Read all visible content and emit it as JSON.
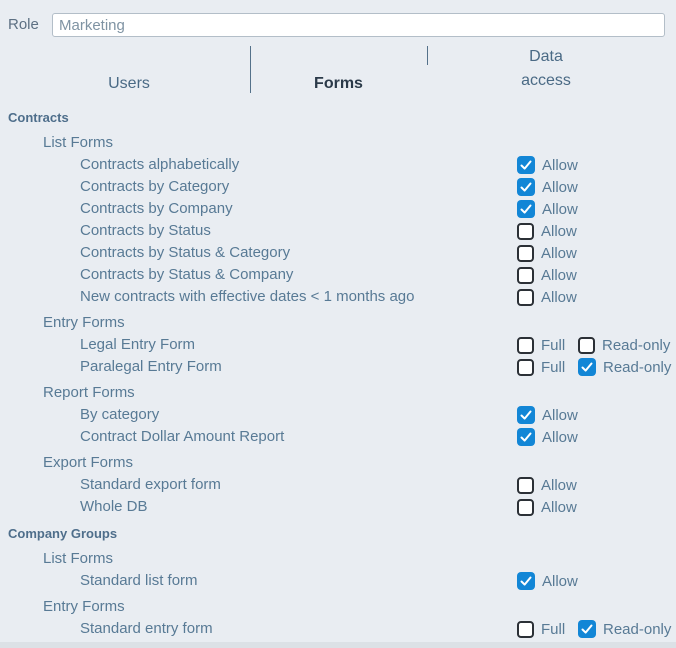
{
  "role_field": {
    "label": "Role",
    "value": "Marketing"
  },
  "tabs": [
    {
      "label": "Users",
      "active": false
    },
    {
      "label": "Forms",
      "active": true
    },
    {
      "label": "Data access",
      "active": false
    }
  ],
  "colors": {
    "background": "#e9edf2",
    "checkbox_checked": "#1286d6",
    "checkbox_border": "#2b3036",
    "section_header_text": "#4e6e8b",
    "item_text": "#587a95",
    "active_tab_text": "#2b3a49",
    "inactive_tab_text": "#4a6a85",
    "input_border": "#b3bec8"
  },
  "sections": [
    {
      "title": "Contracts",
      "groups": [
        {
          "title": "List Forms",
          "items": [
            {
              "label": "Contracts alphabetically",
              "controls": [
                {
                  "type": "checkbox",
                  "label": "Allow",
                  "checked": true
                }
              ]
            },
            {
              "label": "Contracts by Category",
              "controls": [
                {
                  "type": "checkbox",
                  "label": "Allow",
                  "checked": true
                }
              ]
            },
            {
              "label": "Contracts by Company",
              "controls": [
                {
                  "type": "checkbox",
                  "label": "Allow",
                  "checked": true
                }
              ]
            },
            {
              "label": "Contracts by Status",
              "controls": [
                {
                  "type": "checkbox",
                  "label": "Allow",
                  "checked": false
                }
              ]
            },
            {
              "label": "Contracts by Status & Category",
              "controls": [
                {
                  "type": "checkbox",
                  "label": "Allow",
                  "checked": false
                }
              ]
            },
            {
              "label": "Contracts by Status & Company",
              "controls": [
                {
                  "type": "checkbox",
                  "label": "Allow",
                  "checked": false
                }
              ]
            },
            {
              "label": "New contracts with effective dates < 1 months ago",
              "controls": [
                {
                  "type": "checkbox",
                  "label": "Allow",
                  "checked": false
                }
              ]
            }
          ]
        },
        {
          "title": "Entry Forms",
          "items": [
            {
              "label": "Legal Entry Form",
              "controls": [
                {
                  "type": "checkbox",
                  "label": "Full",
                  "checked": false
                },
                {
                  "type": "checkbox",
                  "label": "Read-only",
                  "checked": false
                }
              ]
            },
            {
              "label": "Paralegal Entry Form",
              "controls": [
                {
                  "type": "checkbox",
                  "label": "Full",
                  "checked": false
                },
                {
                  "type": "checkbox",
                  "label": "Read-only",
                  "checked": true
                }
              ]
            }
          ]
        },
        {
          "title": "Report Forms",
          "items": [
            {
              "label": "By category",
              "controls": [
                {
                  "type": "checkbox",
                  "label": "Allow",
                  "checked": true
                }
              ]
            },
            {
              "label": "Contract Dollar Amount Report",
              "controls": [
                {
                  "type": "checkbox",
                  "label": "Allow",
                  "checked": true
                }
              ]
            }
          ]
        },
        {
          "title": "Export Forms",
          "items": [
            {
              "label": "Standard export form",
              "controls": [
                {
                  "type": "checkbox",
                  "label": "Allow",
                  "checked": false
                }
              ]
            },
            {
              "label": "Whole DB",
              "controls": [
                {
                  "type": "checkbox",
                  "label": "Allow",
                  "checked": false
                }
              ]
            }
          ]
        }
      ]
    },
    {
      "title": "Company Groups",
      "groups": [
        {
          "title": "List Forms",
          "items": [
            {
              "label": "Standard list form",
              "controls": [
                {
                  "type": "checkbox",
                  "label": "Allow",
                  "checked": true
                }
              ]
            }
          ]
        },
        {
          "title": "Entry Forms",
          "items": [
            {
              "label": "Standard entry form",
              "controls": [
                {
                  "type": "checkbox",
                  "label": "Full",
                  "checked": false
                },
                {
                  "type": "checkbox",
                  "label": "Read-only",
                  "checked": true
                }
              ]
            }
          ]
        }
      ]
    }
  ]
}
